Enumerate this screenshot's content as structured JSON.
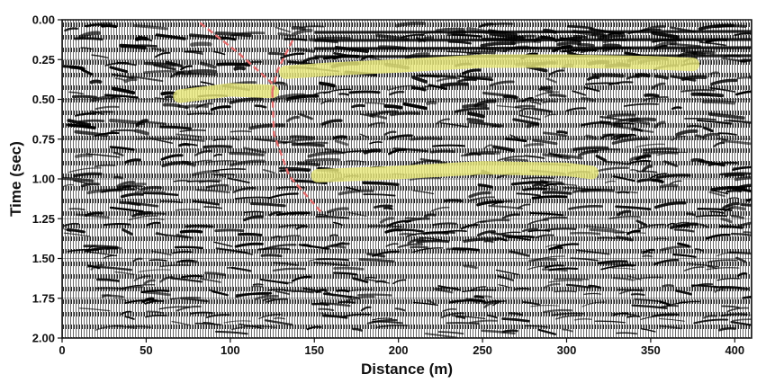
{
  "chart_data": {
    "type": "seismic-section",
    "title": "",
    "xlabel": "Distance (m)",
    "ylabel": "Time (sec)",
    "x_ticks": [
      0,
      50,
      100,
      150,
      200,
      250,
      300,
      350,
      400
    ],
    "y_ticks": [
      "0.00",
      "0.25",
      "0.50",
      "0.75",
      "1.00",
      "1.25",
      "1.50",
      "1.75",
      "2.00"
    ],
    "xlim": [
      0,
      410
    ],
    "ylim": [
      0,
      2.0
    ],
    "y_inverted": true,
    "grid": false,
    "highlight_color": "#e8e87a",
    "fault_color": "#e46b6b",
    "reflectors_highlighted": [
      {
        "points": [
          [
            70,
            0.48
          ],
          [
            100,
            0.44
          ],
          [
            125,
            0.45
          ]
        ]
      },
      {
        "points": [
          [
            133,
            0.33
          ],
          [
            160,
            0.31
          ],
          [
            200,
            0.29
          ],
          [
            250,
            0.26
          ],
          [
            300,
            0.26
          ],
          [
            350,
            0.27
          ],
          [
            375,
            0.28
          ]
        ]
      },
      {
        "points": [
          [
            152,
            0.98
          ],
          [
            200,
            0.96
          ],
          [
            250,
            0.93
          ],
          [
            300,
            0.94
          ],
          [
            315,
            0.96
          ]
        ]
      }
    ],
    "faults": [
      {
        "style": "dashed",
        "points": [
          [
            82,
            0.02
          ],
          [
            105,
            0.21
          ],
          [
            125,
            0.4
          ]
        ]
      },
      {
        "style": "dashed",
        "points": [
          [
            137,
            0.13
          ],
          [
            128,
            0.32
          ],
          [
            125,
            0.45
          ]
        ]
      },
      {
        "style": "dashed",
        "points": [
          [
            125,
            0.45
          ],
          [
            126,
            0.72
          ],
          [
            135,
            0.98
          ],
          [
            155,
            1.22
          ]
        ]
      }
    ]
  }
}
